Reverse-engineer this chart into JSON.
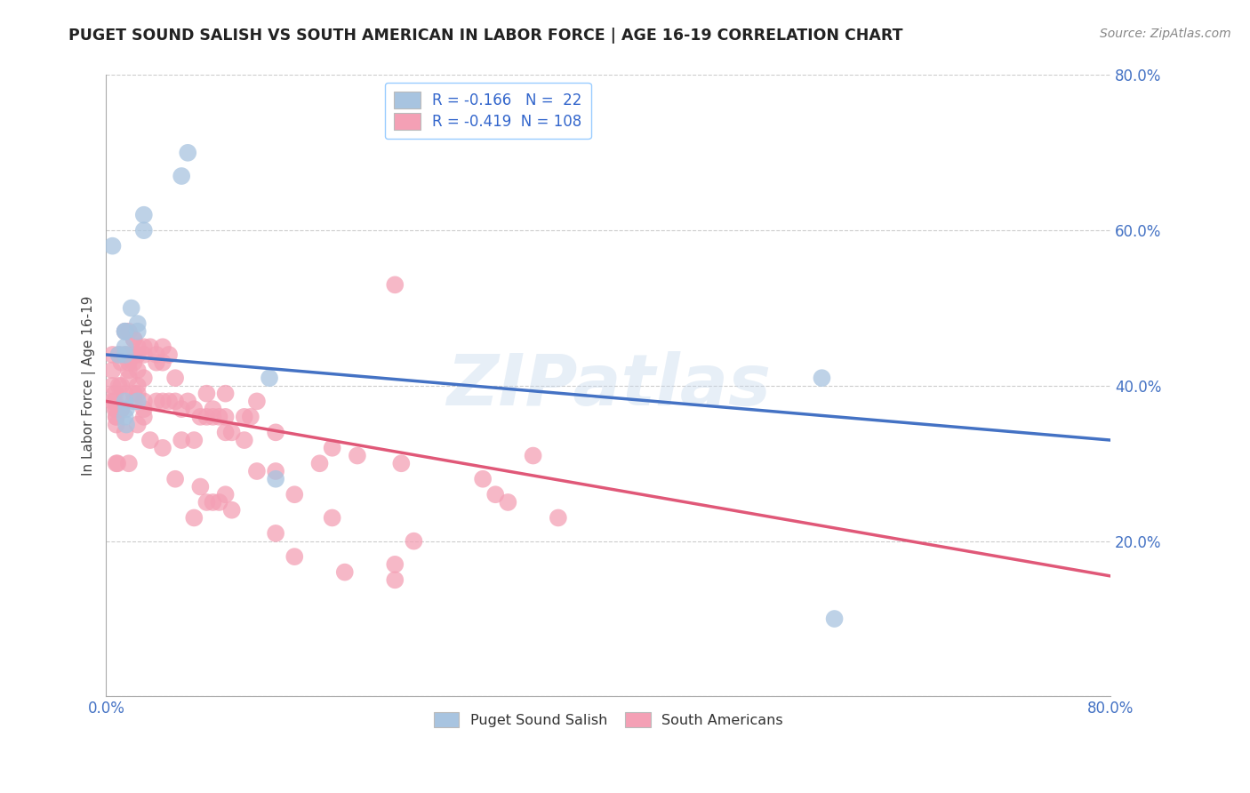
{
  "title": "PUGET SOUND SALISH VS SOUTH AMERICAN IN LABOR FORCE | AGE 16-19 CORRELATION CHART",
  "source": "Source: ZipAtlas.com",
  "ylabel": "In Labor Force | Age 16-19",
  "xlim": [
    0.0,
    0.8
  ],
  "ylim": [
    0.0,
    0.8
  ],
  "blue_R": -0.166,
  "blue_N": 22,
  "pink_R": -0.419,
  "pink_N": 108,
  "blue_color": "#a8c4e0",
  "pink_color": "#f4a0b5",
  "blue_line_color": "#4472c4",
  "pink_line_color": "#e05878",
  "watermark": "ZIPatlas",
  "background_color": "#ffffff",
  "blue_line_x0": 0.0,
  "blue_line_y0": 0.44,
  "blue_line_x1": 0.8,
  "blue_line_y1": 0.33,
  "pink_line_x0": 0.0,
  "pink_line_y0": 0.38,
  "pink_line_x1": 0.8,
  "pink_line_y1": 0.155,
  "blue_scatter_x": [
    0.005,
    0.01,
    0.015,
    0.015,
    0.015,
    0.015,
    0.015,
    0.015,
    0.016,
    0.016,
    0.02,
    0.025,
    0.025,
    0.025,
    0.03,
    0.03,
    0.06,
    0.065,
    0.13,
    0.135,
    0.57,
    0.58
  ],
  "blue_scatter_y": [
    0.58,
    0.44,
    0.47,
    0.47,
    0.45,
    0.44,
    0.38,
    0.36,
    0.37,
    0.35,
    0.5,
    0.48,
    0.47,
    0.38,
    0.6,
    0.62,
    0.67,
    0.7,
    0.41,
    0.28,
    0.41,
    0.1
  ],
  "pink_scatter_x": [
    0.005,
    0.005,
    0.005,
    0.005,
    0.007,
    0.007,
    0.007,
    0.008,
    0.008,
    0.008,
    0.008,
    0.008,
    0.009,
    0.01,
    0.01,
    0.012,
    0.012,
    0.012,
    0.012,
    0.015,
    0.015,
    0.015,
    0.015,
    0.018,
    0.018,
    0.018,
    0.018,
    0.018,
    0.018,
    0.022,
    0.022,
    0.022,
    0.022,
    0.022,
    0.022,
    0.025,
    0.025,
    0.025,
    0.025,
    0.025,
    0.025,
    0.03,
    0.03,
    0.03,
    0.03,
    0.03,
    0.03,
    0.035,
    0.035,
    0.04,
    0.04,
    0.04,
    0.045,
    0.045,
    0.045,
    0.045,
    0.05,
    0.05,
    0.055,
    0.055,
    0.055,
    0.06,
    0.06,
    0.065,
    0.07,
    0.07,
    0.07,
    0.075,
    0.075,
    0.08,
    0.08,
    0.08,
    0.085,
    0.085,
    0.085,
    0.09,
    0.09,
    0.095,
    0.095,
    0.095,
    0.095,
    0.1,
    0.1,
    0.11,
    0.11,
    0.115,
    0.12,
    0.12,
    0.135,
    0.135,
    0.135,
    0.15,
    0.15,
    0.17,
    0.18,
    0.18,
    0.19,
    0.2,
    0.23,
    0.23,
    0.23,
    0.235,
    0.245,
    0.3,
    0.31,
    0.32,
    0.34,
    0.36
  ],
  "pink_scatter_y": [
    0.44,
    0.42,
    0.4,
    0.38,
    0.39,
    0.38,
    0.37,
    0.37,
    0.36,
    0.36,
    0.35,
    0.3,
    0.3,
    0.44,
    0.4,
    0.43,
    0.4,
    0.37,
    0.37,
    0.47,
    0.44,
    0.39,
    0.34,
    0.47,
    0.44,
    0.43,
    0.42,
    0.41,
    0.3,
    0.46,
    0.46,
    0.44,
    0.43,
    0.39,
    0.38,
    0.45,
    0.44,
    0.42,
    0.4,
    0.39,
    0.35,
    0.45,
    0.44,
    0.41,
    0.36,
    0.37,
    0.38,
    0.45,
    0.33,
    0.44,
    0.43,
    0.38,
    0.45,
    0.43,
    0.38,
    0.32,
    0.44,
    0.38,
    0.41,
    0.38,
    0.28,
    0.37,
    0.33,
    0.38,
    0.37,
    0.33,
    0.23,
    0.36,
    0.27,
    0.39,
    0.36,
    0.25,
    0.37,
    0.36,
    0.25,
    0.36,
    0.25,
    0.39,
    0.36,
    0.34,
    0.26,
    0.34,
    0.24,
    0.36,
    0.33,
    0.36,
    0.38,
    0.29,
    0.34,
    0.29,
    0.21,
    0.26,
    0.18,
    0.3,
    0.32,
    0.23,
    0.16,
    0.31,
    0.17,
    0.15,
    0.53,
    0.3,
    0.2,
    0.28,
    0.26,
    0.25,
    0.31,
    0.23
  ]
}
